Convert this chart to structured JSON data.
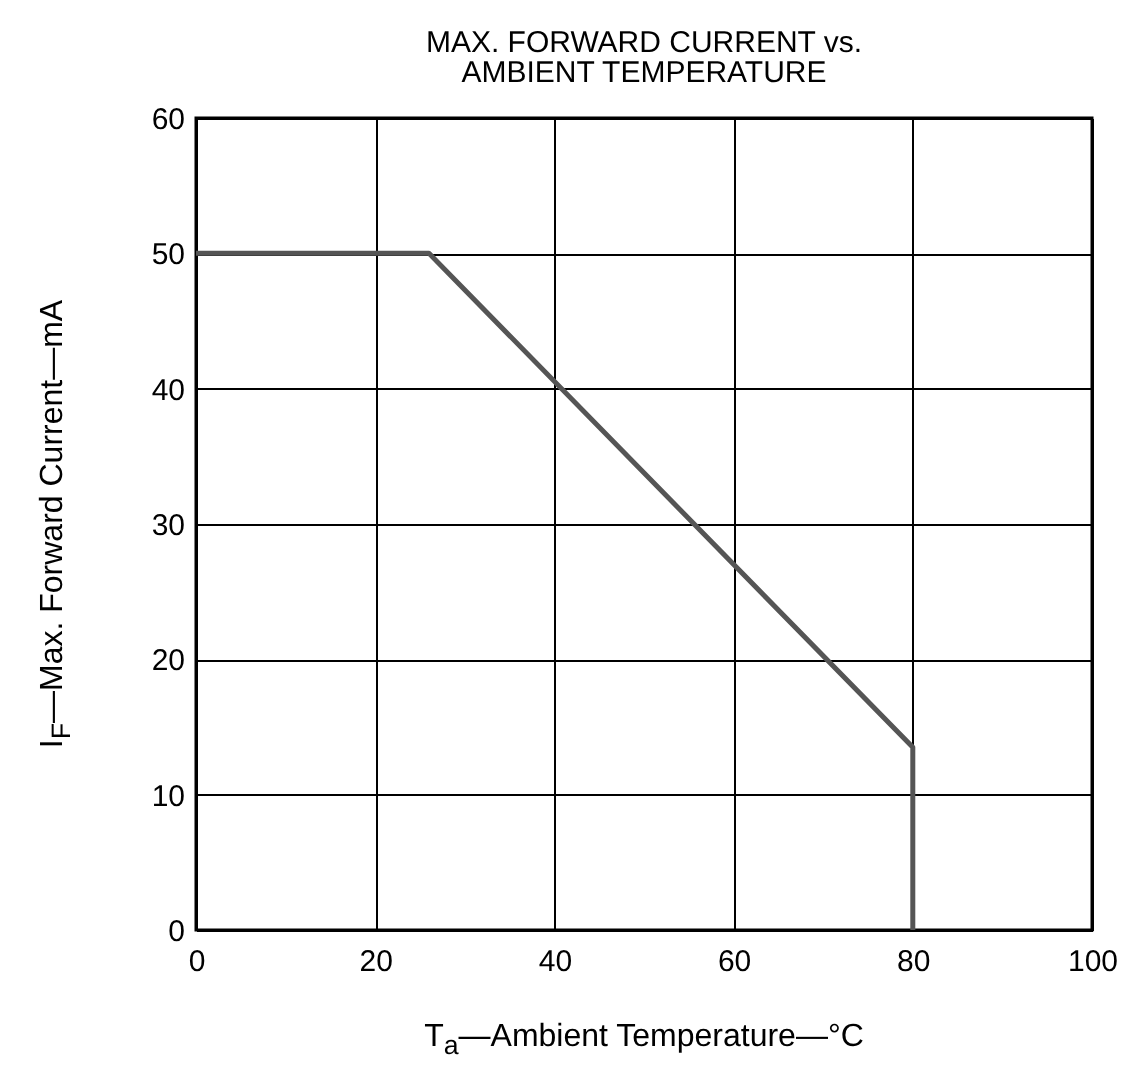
{
  "chart_data": {
    "type": "line",
    "title": [
      "MAX. FORWARD CURRENT vs.",
      "AMBIENT TEMPERATURE"
    ],
    "xlabel": "T$_{a}$—Ambient Temperature—°C",
    "ylabel": "I$_{F}$—Max. Forward Current—mA",
    "x": [
      0,
      26,
      80,
      80
    ],
    "series": [
      {
        "color": "#555555",
        "values": [
          50,
          50,
          13.5,
          0
        ]
      }
    ],
    "xlim": [
      0,
      100
    ],
    "xticks": [
      0,
      20,
      40,
      60,
      80,
      100
    ],
    "ylim": [
      0,
      60
    ],
    "yticks": [
      0,
      10,
      20,
      30,
      40,
      50,
      60
    ],
    "grid": true,
    "marker": "none",
    "line_style": "solid",
    "legend": false
  }
}
